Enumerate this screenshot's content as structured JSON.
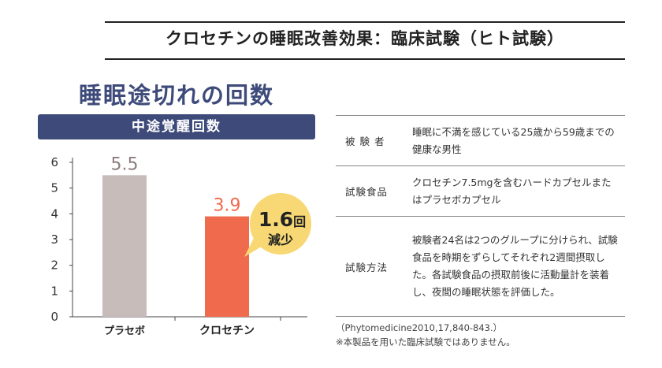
{
  "title": "クロセチンの睡眠改善効果：臨床試験（ヒト試験）",
  "chart_heading": "睡眠途切れの回数",
  "chart_data": {
    "type": "bar",
    "title": "中途覚醒回数",
    "categories": [
      "プラセボ",
      "クロセチン"
    ],
    "values": [
      5.5,
      3.9
    ],
    "value_labels": [
      "5.5",
      "3.9"
    ],
    "ylim": [
      0,
      6
    ],
    "yticks": [
      0,
      1,
      2,
      3,
      4,
      5,
      6
    ],
    "colors": [
      "#c8bcbb",
      "#f06a4e"
    ],
    "label_colors": [
      "#8a7d7c",
      "#f06a4e"
    ],
    "annotation": {
      "value": "1.6",
      "unit": "回",
      "text": "減少",
      "color": "#f7d874"
    }
  },
  "table": {
    "rows": [
      {
        "label": "被 験 者",
        "value": "睡眠に不満を感じている25歳から59歳までの健康な男性"
      },
      {
        "label": "試験食品",
        "value": "クロセチン7.5mgを含むハードカプセルまたはプラセボカプセル"
      },
      {
        "label": "試験方法",
        "value": "被験者24名は2つのグループに分けられ、試験食品を時期をずらしてそれぞれ2週間摂取した。各試験食品の摂取前後に活動量計を装着し、夜間の睡眠状態を評価した。"
      }
    ]
  },
  "citation": "（Phytomedicine2010,17,840-843.）",
  "disclaimer": "※本製品を用いた臨床試験ではありません。"
}
